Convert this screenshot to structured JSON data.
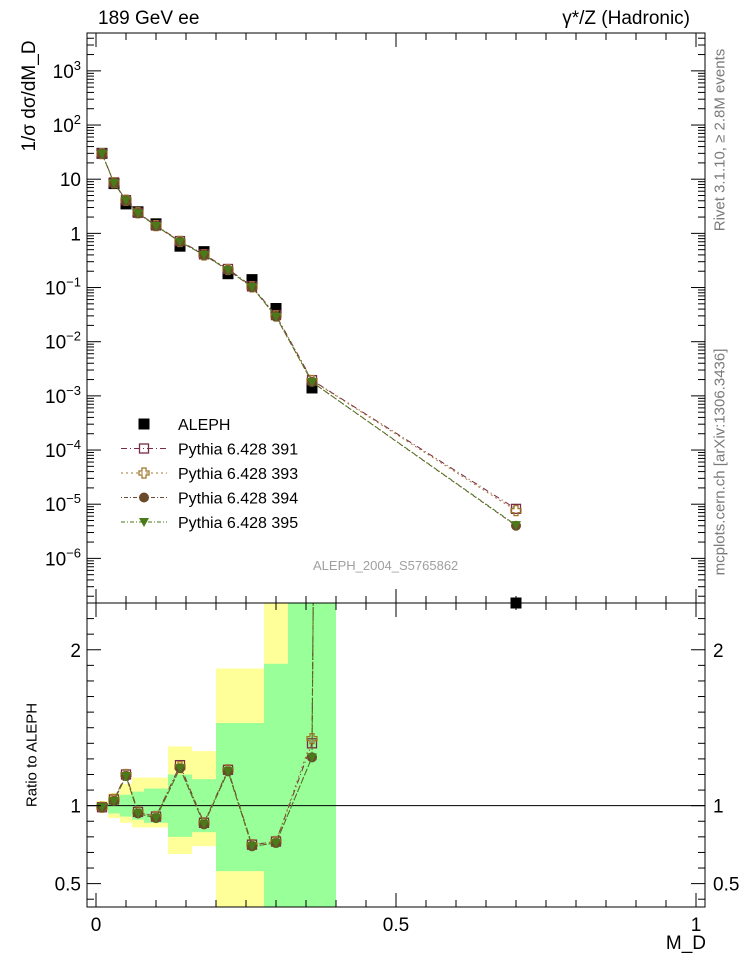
{
  "header": {
    "left": "189 GeV ee",
    "right": "γ*/Z (Hadronic)"
  },
  "side_labels": {
    "rivet": "Rivet 3.1.10, ≥ 2.8M events",
    "mcplots": "mcplots.cern.ch [arXiv:1306.3436]"
  },
  "watermark": "ALEPH_2004_S5765862",
  "colors": {
    "data": "#000000",
    "p391": "#7a2a4a",
    "p393": "#a0782a",
    "p394": "#6b4a2a",
    "p395": "#4a7a1a",
    "band_inner": "#99ff99",
    "band_outer": "#ffff99",
    "watermark": "#a0a0a0"
  },
  "chart_data": [
    {
      "type": "scatter",
      "panel": "main",
      "ylabel": "1/σ dσ/dM_D",
      "yscale": "log",
      "ylim": [
        1.5e-07,
        5000
      ],
      "xlim": [
        -0.015,
        1.015
      ],
      "y_ticks": [
        "10^-6",
        "10^-5",
        "10^-4",
        "10^-3",
        "10^-2",
        "10^-1",
        "1",
        "10",
        "10^2",
        "10^3"
      ],
      "legend_position": "bottom-left",
      "series": [
        {
          "name": "ALEPH",
          "marker": "square",
          "x": [
            0.01,
            0.03,
            0.05,
            0.07,
            0.1,
            0.14,
            0.18,
            0.22,
            0.26,
            0.3,
            0.36,
            0.7
          ],
          "y": [
            30,
            8.3,
            3.5,
            2.5,
            1.5,
            0.58,
            0.46,
            0.18,
            0.14,
            0.041,
            0.0014,
            1.2e-07
          ]
        },
        {
          "name": "Pythia 6.428 391",
          "marker": "open-square",
          "x": [
            0.01,
            0.03,
            0.05,
            0.07,
            0.1,
            0.14,
            0.18,
            0.22,
            0.26,
            0.3,
            0.36,
            0.7
          ],
          "y": [
            29.8,
            8.7,
            4.1,
            2.4,
            1.4,
            0.72,
            0.41,
            0.22,
            0.105,
            0.031,
            0.00195,
            8.2e-06
          ]
        },
        {
          "name": "Pythia 6.428 393",
          "marker": "open-cross",
          "x": [
            0.01,
            0.03,
            0.05,
            0.07,
            0.1,
            0.14,
            0.18,
            0.22,
            0.26,
            0.3,
            0.36,
            0.7
          ],
          "y": [
            29.7,
            8.6,
            4.1,
            2.4,
            1.39,
            0.71,
            0.4,
            0.215,
            0.103,
            0.03,
            0.00192,
            7.6e-06
          ]
        },
        {
          "name": "Pythia 6.428 394",
          "marker": "circle",
          "x": [
            0.01,
            0.03,
            0.05,
            0.07,
            0.1,
            0.14,
            0.18,
            0.22,
            0.26,
            0.3,
            0.36,
            0.7
          ],
          "y": [
            29.6,
            8.5,
            4.05,
            2.35,
            1.37,
            0.7,
            0.4,
            0.21,
            0.102,
            0.029,
            0.0018,
            4e-06
          ]
        },
        {
          "name": "Pythia 6.428 395",
          "marker": "triangle-down",
          "x": [
            0.01,
            0.03,
            0.05,
            0.07,
            0.1,
            0.14,
            0.18,
            0.22,
            0.26,
            0.3,
            0.36,
            0.7
          ],
          "y": [
            29.6,
            8.5,
            4.05,
            2.35,
            1.37,
            0.7,
            0.4,
            0.21,
            0.102,
            0.029,
            0.0018,
            4.1e-06
          ]
        }
      ]
    },
    {
      "type": "line",
      "panel": "ratio",
      "ylabel": "Ratio to ALEPH",
      "xlabel": "M_D",
      "ylim": [
        0.35,
        2.3
      ],
      "xlim": [
        -0.015,
        1.015
      ],
      "y_ticks": [
        0.5,
        1,
        2
      ],
      "x_ticks": [
        0,
        0.5,
        1
      ],
      "bands": [
        {
          "x0": 0.0,
          "x1": 0.02,
          "inner": [
            0.985,
            1.015
          ],
          "outer": [
            0.97,
            1.03
          ]
        },
        {
          "x0": 0.02,
          "x1": 0.04,
          "inner": [
            0.95,
            1.05
          ],
          "outer": [
            0.92,
            1.08
          ]
        },
        {
          "x0": 0.04,
          "x1": 0.06,
          "inner": [
            0.93,
            1.07
          ],
          "outer": [
            0.89,
            1.14
          ]
        },
        {
          "x0": 0.06,
          "x1": 0.08,
          "inner": [
            0.91,
            1.09
          ],
          "outer": [
            0.86,
            1.18
          ]
        },
        {
          "x0": 0.08,
          "x1": 0.12,
          "inner": [
            0.89,
            1.11
          ],
          "outer": [
            0.86,
            1.18
          ]
        },
        {
          "x0": 0.12,
          "x1": 0.16,
          "inner": [
            0.8,
            1.2
          ],
          "outer": [
            0.69,
            1.38
          ]
        },
        {
          "x0": 0.16,
          "x1": 0.2,
          "inner": [
            0.83,
            1.17
          ],
          "outer": [
            0.74,
            1.35
          ]
        },
        {
          "x0": 0.2,
          "x1": 0.28,
          "inner": [
            0.58,
            1.53
          ],
          "outer": [
            0.3,
            1.88
          ]
        },
        {
          "x0": 0.28,
          "x1": 0.32,
          "inner": [
            0.3,
            1.91
          ],
          "outer": [
            0.3,
            2.4
          ]
        },
        {
          "x0": 0.32,
          "x1": 0.4,
          "inner": [
            0.3,
            2.4
          ],
          "outer": [
            0.3,
            2.4
          ]
        }
      ],
      "x": [
        0.01,
        0.03,
        0.05,
        0.07,
        0.1,
        0.14,
        0.18,
        0.22,
        0.26,
        0.3,
        0.36
      ],
      "series": [
        {
          "name": "Pythia 6.428 391",
          "values": [
            0.99,
            1.04,
            1.2,
            0.96,
            0.93,
            1.26,
            0.89,
            1.23,
            0.75,
            0.77,
            1.4
          ]
        },
        {
          "name": "Pythia 6.428 393",
          "values": [
            0.99,
            1.04,
            1.2,
            0.96,
            0.93,
            1.25,
            0.89,
            1.23,
            0.75,
            0.77,
            1.43
          ]
        },
        {
          "name": "Pythia 6.428 394",
          "values": [
            0.99,
            1.03,
            1.19,
            0.95,
            0.92,
            1.24,
            0.88,
            1.22,
            0.74,
            0.76,
            1.31
          ]
        },
        {
          "name": "Pythia 6.428 395",
          "values": [
            0.99,
            1.03,
            1.19,
            0.95,
            0.92,
            1.24,
            0.88,
            1.22,
            0.74,
            0.76,
            1.31
          ]
        }
      ]
    }
  ]
}
